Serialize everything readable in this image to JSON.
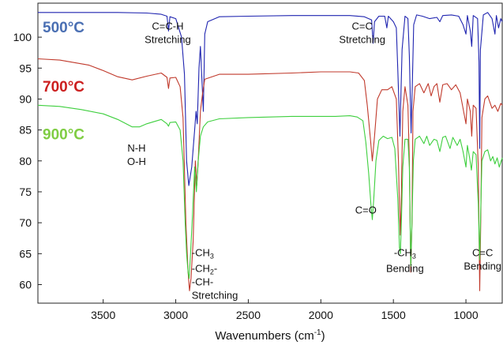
{
  "chart_data": {
    "type": "line",
    "xlabel": "Wavenumbers (cm",
    "xlabel_sup": "-1",
    "xlabel_end": ")",
    "xlim": [
      3950,
      750
    ],
    "ylim": [
      57,
      105.5
    ],
    "x_ticks": [
      3500,
      3000,
      2500,
      2000,
      1500,
      1000
    ],
    "x_tick_labels": [
      "3500",
      "3000",
      "2500",
      "2000",
      "1500",
      "1000"
    ],
    "y_ticks": [
      60,
      65,
      70,
      75,
      80,
      85,
      90,
      95,
      100
    ],
    "y_tick_labels": [
      "60",
      "65",
      "70",
      "75",
      "80",
      "85",
      "90",
      "95",
      "100"
    ],
    "grid": false,
    "legend": "inline labels, top-left",
    "series": [
      {
        "name": "500°C",
        "color": "#1f24b0",
        "label_color": "#4a6fb3",
        "points": [
          [
            3950,
            104.0
          ],
          [
            3700,
            104.0
          ],
          [
            3400,
            104.0
          ],
          [
            3200,
            103.9
          ],
          [
            3100,
            103.7
          ],
          [
            3060,
            103.4
          ],
          [
            3050,
            101.0
          ],
          [
            3040,
            103.3
          ],
          [
            3000,
            103.0
          ],
          [
            2960,
            100.0
          ],
          [
            2940,
            94.0
          ],
          [
            2925,
            80.0
          ],
          [
            2910,
            76.0
          ],
          [
            2890,
            79.0
          ],
          [
            2870,
            85.0
          ],
          [
            2860,
            88.0
          ],
          [
            2852,
            86.0
          ],
          [
            2840,
            95.0
          ],
          [
            2830,
            98.5
          ],
          [
            2810,
            88.0
          ],
          [
            2800,
            100.5
          ],
          [
            2780,
            102.5
          ],
          [
            2700,
            103.3
          ],
          [
            2500,
            103.4
          ],
          [
            2200,
            103.5
          ],
          [
            1900,
            103.5
          ],
          [
            1800,
            103.5
          ],
          [
            1700,
            103.3
          ],
          [
            1650,
            102.8
          ],
          [
            1640,
            99.0
          ],
          [
            1630,
            102.5
          ],
          [
            1600,
            103.4
          ],
          [
            1560,
            103.4
          ],
          [
            1545,
            101.5
          ],
          [
            1535,
            103.4
          ],
          [
            1500,
            102.5
          ],
          [
            1480,
            101.5
          ],
          [
            1470,
            95.0
          ],
          [
            1460,
            88.0
          ],
          [
            1455,
            84.0
          ],
          [
            1450,
            89.0
          ],
          [
            1440,
            98.0
          ],
          [
            1420,
            103.4
          ],
          [
            1400,
            103.0
          ],
          [
            1390,
            97.0
          ],
          [
            1378,
            84.5
          ],
          [
            1370,
            92.0
          ],
          [
            1360,
            102.0
          ],
          [
            1340,
            103.6
          ],
          [
            1300,
            103.4
          ],
          [
            1250,
            103.0
          ],
          [
            1200,
            103.2
          ],
          [
            1180,
            102.5
          ],
          [
            1160,
            103.5
          ],
          [
            1100,
            103.6
          ],
          [
            1050,
            103.4
          ],
          [
            1020,
            102.0
          ],
          [
            1000,
            100.5
          ],
          [
            990,
            103.5
          ],
          [
            970,
            101.0
          ],
          [
            960,
            98.5
          ],
          [
            950,
            103.5
          ],
          [
            920,
            103.0
          ],
          [
            910,
            96.0
          ],
          [
            905,
            82.0
          ],
          [
            900,
            98.0
          ],
          [
            880,
            103.6
          ],
          [
            850,
            104.0
          ],
          [
            820,
            103.0
          ],
          [
            800,
            100.5
          ],
          [
            790,
            103.5
          ],
          [
            775,
            101.5
          ],
          [
            760,
            103.0
          ],
          [
            750,
            102.5
          ]
        ]
      },
      {
        "name": "700°C",
        "color": "#c0392b",
        "label_color": "#cc1f1f",
        "points": [
          [
            3950,
            96.5
          ],
          [
            3800,
            96.3
          ],
          [
            3600,
            95.5
          ],
          [
            3500,
            94.6
          ],
          [
            3400,
            93.6
          ],
          [
            3300,
            93.1
          ],
          [
            3200,
            93.7
          ],
          [
            3100,
            94.2
          ],
          [
            3060,
            93.5
          ],
          [
            3050,
            91.7
          ],
          [
            3040,
            93.4
          ],
          [
            3000,
            93.5
          ],
          [
            2970,
            92.0
          ],
          [
            2950,
            87.0
          ],
          [
            2930,
            70.0
          ],
          [
            2915,
            62.0
          ],
          [
            2905,
            59.0
          ],
          [
            2895,
            61.0
          ],
          [
            2880,
            67.0
          ],
          [
            2865,
            80.0
          ],
          [
            2855,
            76.0
          ],
          [
            2845,
            80.0
          ],
          [
            2830,
            88.0
          ],
          [
            2815,
            91.0
          ],
          [
            2800,
            93.2
          ],
          [
            2700,
            94.0
          ],
          [
            2500,
            94.0
          ],
          [
            2200,
            94.2
          ],
          [
            2000,
            94.4
          ],
          [
            1800,
            94.4
          ],
          [
            1740,
            94.2
          ],
          [
            1700,
            93.0
          ],
          [
            1680,
            89.0
          ],
          [
            1660,
            84.0
          ],
          [
            1645,
            80.0
          ],
          [
            1630,
            84.0
          ],
          [
            1610,
            90.0
          ],
          [
            1580,
            91.5
          ],
          [
            1540,
            91.5
          ],
          [
            1510,
            92.0
          ],
          [
            1480,
            90.0
          ],
          [
            1465,
            80.0
          ],
          [
            1458,
            72.0
          ],
          [
            1452,
            68.0
          ],
          [
            1445,
            75.0
          ],
          [
            1435,
            88.0
          ],
          [
            1420,
            92.0
          ],
          [
            1400,
            89.0
          ],
          [
            1390,
            80.0
          ],
          [
            1380,
            62.0
          ],
          [
            1372,
            70.0
          ],
          [
            1365,
            88.0
          ],
          [
            1350,
            92.0
          ],
          [
            1320,
            92.5
          ],
          [
            1290,
            91.0
          ],
          [
            1260,
            92.5
          ],
          [
            1240,
            90.5
          ],
          [
            1220,
            92.0
          ],
          [
            1200,
            92.5
          ],
          [
            1180,
            89.5
          ],
          [
            1160,
            92.3
          ],
          [
            1130,
            92.5
          ],
          [
            1100,
            91.5
          ],
          [
            1070,
            92.3
          ],
          [
            1040,
            91.0
          ],
          [
            1020,
            88.5
          ],
          [
            1000,
            86.0
          ],
          [
            990,
            90.0
          ],
          [
            970,
            88.0
          ],
          [
            960,
            84.0
          ],
          [
            950,
            89.0
          ],
          [
            930,
            88.5
          ],
          [
            915,
            79.0
          ],
          [
            905,
            59.0
          ],
          [
            898,
            70.0
          ],
          [
            890,
            87.0
          ],
          [
            870,
            90.0
          ],
          [
            850,
            90.5
          ],
          [
            820,
            88.5
          ],
          [
            800,
            89.0
          ],
          [
            780,
            88.0
          ],
          [
            760,
            89.3
          ],
          [
            750,
            89.0
          ]
        ]
      },
      {
        "name": "900°C",
        "color": "#3ecf3e",
        "label_color": "#7fcd43",
        "points": [
          [
            3950,
            89.0
          ],
          [
            3800,
            88.8
          ],
          [
            3650,
            88.3
          ],
          [
            3500,
            87.6
          ],
          [
            3400,
            86.7
          ],
          [
            3300,
            85.5
          ],
          [
            3250,
            85.5
          ],
          [
            3200,
            86.0
          ],
          [
            3100,
            86.7
          ],
          [
            3060,
            86.0
          ],
          [
            3050,
            85.6
          ],
          [
            3040,
            86.2
          ],
          [
            3000,
            86.3
          ],
          [
            2970,
            85.0
          ],
          [
            2950,
            80.0
          ],
          [
            2935,
            70.0
          ],
          [
            2925,
            65.0
          ],
          [
            2915,
            62.0
          ],
          [
            2908,
            61.0
          ],
          [
            2898,
            65.0
          ],
          [
            2885,
            71.0
          ],
          [
            2870,
            79.0
          ],
          [
            2858,
            75.0
          ],
          [
            2845,
            80.0
          ],
          [
            2830,
            84.0
          ],
          [
            2810,
            85.5
          ],
          [
            2780,
            86.3
          ],
          [
            2700,
            86.8
          ],
          [
            2500,
            87.0
          ],
          [
            2200,
            87.2
          ],
          [
            1900,
            87.2
          ],
          [
            1800,
            87.3
          ],
          [
            1750,
            87.1
          ],
          [
            1710,
            86.5
          ],
          [
            1690,
            83.0
          ],
          [
            1670,
            78.0
          ],
          [
            1655,
            73.0
          ],
          [
            1645,
            70.5
          ],
          [
            1635,
            74.0
          ],
          [
            1620,
            80.0
          ],
          [
            1600,
            83.3
          ],
          [
            1570,
            84.0
          ],
          [
            1540,
            83.6
          ],
          [
            1510,
            83.8
          ],
          [
            1490,
            82.0
          ],
          [
            1470,
            74.0
          ],
          [
            1458,
            66.0
          ],
          [
            1452,
            65.0
          ],
          [
            1445,
            70.0
          ],
          [
            1435,
            79.0
          ],
          [
            1420,
            83.5
          ],
          [
            1400,
            83.5
          ],
          [
            1390,
            79.0
          ],
          [
            1380,
            63.0
          ],
          [
            1372,
            70.0
          ],
          [
            1362,
            80.0
          ],
          [
            1350,
            83.5
          ],
          [
            1320,
            84.0
          ],
          [
            1290,
            82.8
          ],
          [
            1270,
            84.0
          ],
          [
            1250,
            82.5
          ],
          [
            1220,
            83.5
          ],
          [
            1200,
            83.3
          ],
          [
            1180,
            81.5
          ],
          [
            1160,
            83.8
          ],
          [
            1140,
            84.0
          ],
          [
            1110,
            82.0
          ],
          [
            1090,
            83.8
          ],
          [
            1060,
            82.5
          ],
          [
            1040,
            83.5
          ],
          [
            1020,
            81.5
          ],
          [
            1000,
            79.0
          ],
          [
            990,
            82.5
          ],
          [
            975,
            80.5
          ],
          [
            962,
            78.5
          ],
          [
            950,
            81.5
          ],
          [
            930,
            81.0
          ],
          [
            915,
            73.0
          ],
          [
            905,
            64.0
          ],
          [
            898,
            72.0
          ],
          [
            890,
            80.0
          ],
          [
            870,
            81.5
          ],
          [
            850,
            81.8
          ],
          [
            830,
            80.0
          ],
          [
            815,
            80.7
          ],
          [
            800,
            79.5
          ],
          [
            785,
            80.5
          ],
          [
            770,
            79.0
          ],
          [
            750,
            80.5
          ]
        ]
      }
    ],
    "annotations": [
      {
        "id": "cch-stretch",
        "lines": [
          "C=C-H",
          "Stretching"
        ],
        "x": 3055,
        "y": 101.2,
        "anchor": "middle"
      },
      {
        "id": "cc-stretch",
        "lines": [
          "C=C",
          "Stretching"
        ],
        "x": 1715,
        "y": 101.2,
        "anchor": "middle"
      },
      {
        "id": "nh-oh",
        "lines": [
          "N-H",
          "O-H"
        ],
        "x": 3270,
        "y": 81.5,
        "anchor": "middle"
      },
      {
        "id": "co",
        "lines": [
          "C=O"
        ],
        "x": 1690,
        "y": 71.5,
        "anchor": "middle"
      },
      {
        "id": "ch-stretch",
        "lines": [
          "-CH3",
          "-CH2-",
          "-CH-",
          "Stretching"
        ],
        "x": 2890,
        "y": 64.6,
        "anchor": "start"
      },
      {
        "id": "ch3-bend",
        "lines": [
          "-CH3",
          "Bending"
        ],
        "x": 1420,
        "y": 64.6,
        "anchor": "middle"
      },
      {
        "id": "cc-bend",
        "lines": [
          "C=C",
          "Bending"
        ],
        "x": 885,
        "y": 64.6,
        "anchor": "middle"
      }
    ]
  }
}
